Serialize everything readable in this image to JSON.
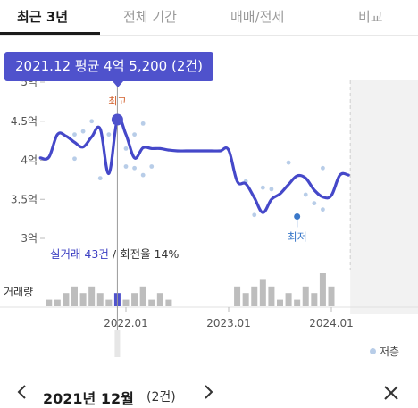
{
  "tabs": [
    {
      "label": "최근 3년",
      "active": true
    },
    {
      "label": "전체 기간",
      "active": false
    },
    {
      "label": "매매/전세",
      "active": false
    },
    {
      "label": "비교",
      "active": false
    }
  ],
  "tooltip": {
    "text": "2021.12 평균 4억 5,200 (2건)"
  },
  "stats": {
    "trade_count": "실거래 43건",
    "separator": " / ",
    "turnover": "회전율 14%"
  },
  "volume_label": "거래량",
  "legend": {
    "label": "저층"
  },
  "bottom_bar": {
    "month_label": "2021년 12월",
    "count": "(2건)"
  },
  "icons": {
    "prev": "chevron-left-icon",
    "next": "chevron-right-icon",
    "close": "close-icon"
  },
  "colors": {
    "line": "#4548c9",
    "selected": "#4f52cc",
    "low_floor": "#b8cde8",
    "volume_bar": "#bdbdbd",
    "high_label": "#d2602c"
  },
  "chart_data": {
    "type": "line",
    "unit": "억",
    "y_ticks": [
      "5억",
      "4.5억",
      "4억",
      "3.5억",
      "3억"
    ],
    "y_tick_values": [
      5,
      4.5,
      4,
      3.5,
      3
    ],
    "ylim": [
      3,
      5
    ],
    "x_ticks": [
      "2022.01",
      "2023.01",
      "2024.01"
    ],
    "x_tick_values": [
      "2022-01",
      "2023-01",
      "2024-01"
    ],
    "xlim": [
      "2021-02",
      "2024-03"
    ],
    "average_line": [
      [
        "2021-03",
        4.03
      ],
      [
        "2021-04",
        4.04
      ],
      [
        "2021-05",
        4.33
      ],
      [
        "2021-06",
        4.31
      ],
      [
        "2021-07",
        4.23
      ],
      [
        "2021-08",
        4.17
      ],
      [
        "2021-09",
        4.3
      ],
      [
        "2021-10",
        4.4
      ],
      [
        "2021-11",
        3.83
      ],
      [
        "2021-12",
        4.52
      ],
      [
        "2022-01",
        4.33
      ],
      [
        "2022-02",
        4.03
      ],
      [
        "2022-03",
        4.16
      ],
      [
        "2022-04",
        4.15
      ],
      [
        "2022-05",
        4.15
      ],
      [
        "2022-06",
        4.13
      ],
      [
        "2022-07",
        4.12
      ],
      [
        "2022-08",
        4.12
      ],
      [
        "2022-09",
        4.12
      ],
      [
        "2022-10",
        4.12
      ],
      [
        "2022-11",
        4.12
      ],
      [
        "2022-12",
        4.12
      ],
      [
        "2023-01",
        4.13
      ],
      [
        "2023-02",
        3.73
      ],
      [
        "2023-03",
        3.7
      ],
      [
        "2023-04",
        3.52
      ],
      [
        "2023-05",
        3.33
      ],
      [
        "2023-06",
        3.5
      ],
      [
        "2023-07",
        3.57
      ],
      [
        "2023-08",
        3.69
      ],
      [
        "2023-09",
        3.8
      ],
      [
        "2023-10",
        3.77
      ],
      [
        "2023-11",
        3.62
      ],
      [
        "2023-12",
        3.53
      ],
      [
        "2024-01",
        3.55
      ],
      [
        "2024-02",
        3.81
      ],
      [
        "2024-03",
        3.81
      ]
    ],
    "transactions": [
      [
        "2021-07",
        4.33
      ],
      [
        "2021-07",
        4.02
      ],
      [
        "2021-08",
        4.37
      ],
      [
        "2021-09",
        4.5
      ],
      [
        "2021-10",
        3.77
      ],
      [
        "2021-11",
        4.33
      ],
      [
        "2021-12",
        4.52
      ],
      [
        "2022-01",
        4.15
      ],
      [
        "2022-01",
        3.92
      ],
      [
        "2022-02",
        4.33
      ],
      [
        "2022-02",
        3.9
      ],
      [
        "2022-03",
        4.47
      ],
      [
        "2022-03",
        3.81
      ],
      [
        "2022-04",
        3.92
      ],
      [
        "2023-03",
        3.73
      ],
      [
        "2023-04",
        3.3
      ],
      [
        "2023-05",
        3.65
      ],
      [
        "2023-06",
        3.63
      ],
      [
        "2023-08",
        3.97
      ],
      [
        "2023-10",
        3.56
      ],
      [
        "2023-11",
        3.45
      ],
      [
        "2023-12",
        3.37
      ],
      [
        "2023-12",
        3.9
      ]
    ],
    "volume": [
      [
        "2021-04",
        1
      ],
      [
        "2021-05",
        1
      ],
      [
        "2021-06",
        2
      ],
      [
        "2021-07",
        3
      ],
      [
        "2021-08",
        2
      ],
      [
        "2021-09",
        3
      ],
      [
        "2021-10",
        2
      ],
      [
        "2021-11",
        1
      ],
      [
        "2021-12",
        2
      ],
      [
        "2022-01",
        1
      ],
      [
        "2022-02",
        2
      ],
      [
        "2022-03",
        3
      ],
      [
        "2022-04",
        1
      ],
      [
        "2022-05",
        2
      ],
      [
        "2022-06",
        1
      ],
      [
        "2023-02",
        3
      ],
      [
        "2023-03",
        2
      ],
      [
        "2023-04",
        3
      ],
      [
        "2023-05",
        4
      ],
      [
        "2023-06",
        3
      ],
      [
        "2023-07",
        1
      ],
      [
        "2023-08",
        2
      ],
      [
        "2023-09",
        1
      ],
      [
        "2023-10",
        3
      ],
      [
        "2023-11",
        2
      ],
      [
        "2023-12",
        5
      ],
      [
        "2024-01",
        3
      ]
    ],
    "selected": {
      "x": "2021-12",
      "y": 4.52,
      "label": "최고"
    },
    "low": {
      "x": "2023-09",
      "y": 3.28,
      "label": "최저"
    }
  }
}
